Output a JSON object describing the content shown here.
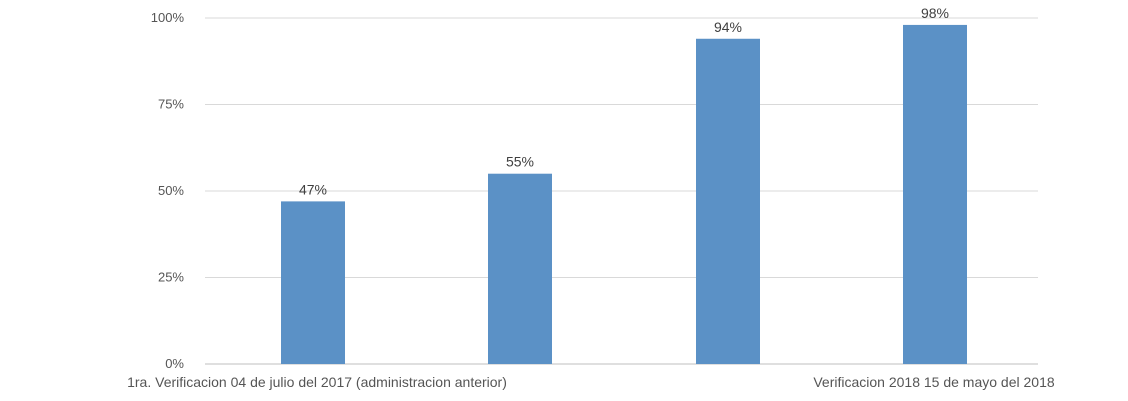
{
  "chart_data": {
    "type": "bar",
    "title": "",
    "xlabel": "",
    "ylabel": "",
    "ylim": [
      0,
      100
    ],
    "y_ticks": [
      "0%",
      "25%",
      "50%",
      "75%",
      "100%"
    ],
    "grid": true,
    "legend": "none",
    "bar_color": "#5b91c6",
    "values": [
      47,
      55,
      94,
      98
    ],
    "data_labels": [
      "47%",
      "55%",
      "94%",
      "98%"
    ],
    "category_groups": [
      "1ra. Verificacion 04 de julio del 2017 (administracion anterior)",
      "Verificacion 2018 15 de mayo del 2018"
    ]
  }
}
